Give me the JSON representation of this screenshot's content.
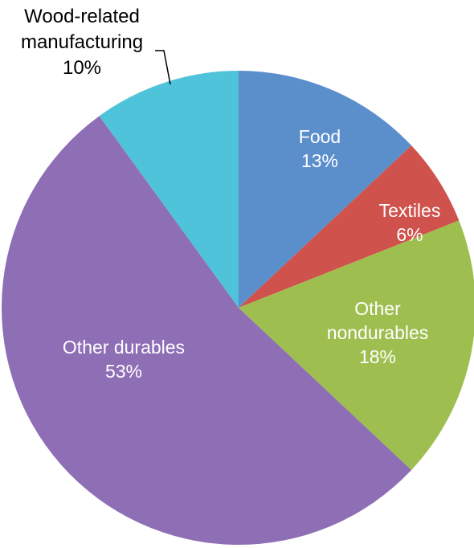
{
  "chart_data": {
    "type": "pie",
    "title": "",
    "unit": "%",
    "slices": [
      {
        "label": [
          "Food"
        ],
        "percent_label": "13%",
        "value": 13,
        "color": "#5b8fcc"
      },
      {
        "label": [
          "Textiles"
        ],
        "percent_label": "6%",
        "value": 6,
        "color": "#d0524c"
      },
      {
        "label": [
          "Other",
          "nondurables"
        ],
        "percent_label": "18%",
        "value": 18,
        "color": "#9ebf4f"
      },
      {
        "label": [
          "Other durables"
        ],
        "percent_label": "53%",
        "value": 53,
        "color": "#8e6fb5"
      },
      {
        "label": [
          "Wood-related",
          "manufacturing"
        ],
        "percent_label": "10%",
        "value": 10,
        "color": "#4ec3d9"
      }
    ]
  }
}
